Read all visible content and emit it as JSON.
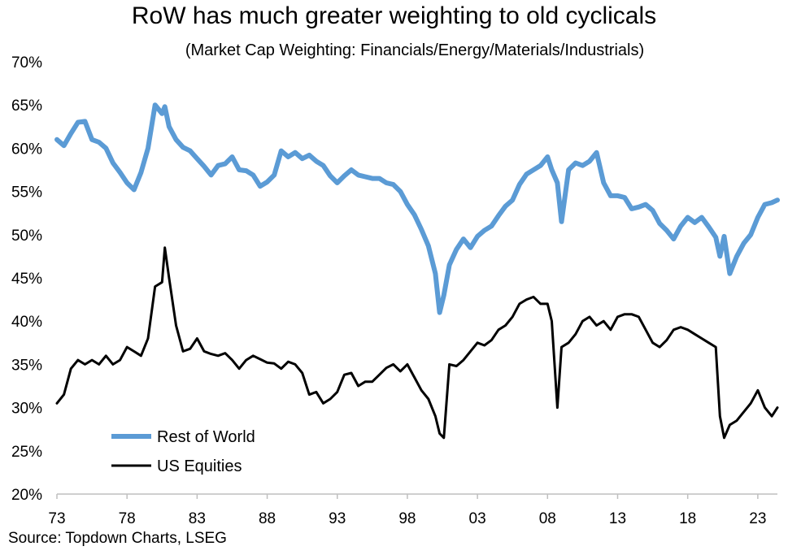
{
  "chart_data": {
    "type": "line",
    "title": "RoW has much greater weighting to old cyclicals",
    "subtitle": "(Market Cap Weighting: Financials/Energy/Materials/Industrials)",
    "source": "Source: Topdown Charts, LSEG",
    "ylim": [
      0.2,
      0.7
    ],
    "y_ticks": [
      "70%",
      "65%",
      "60%",
      "55%",
      "50%",
      "45%",
      "40%",
      "35%",
      "30%",
      "25%",
      "20%"
    ],
    "y_tick_values": [
      0.7,
      0.65,
      0.6,
      0.55,
      0.5,
      0.45,
      0.4,
      0.35,
      0.3,
      0.25,
      0.2
    ],
    "xlim": [
      1973,
      2024.4
    ],
    "x_ticks": [
      "73",
      "78",
      "83",
      "88",
      "93",
      "98",
      "03",
      "08",
      "13",
      "18",
      "23"
    ],
    "x_tick_values": [
      1973,
      1978,
      1983,
      1988,
      1993,
      1998,
      2003,
      2008,
      2013,
      2018,
      2023
    ],
    "grid": false,
    "legend_position": "bottom-left",
    "series": [
      {
        "name": "Rest of World",
        "color": "#5b9bd5",
        "x": [
          1973.0,
          1973.5,
          1974.0,
          1974.5,
          1975.0,
          1975.5,
          1976.0,
          1976.5,
          1977.0,
          1977.5,
          1978.0,
          1978.5,
          1979.0,
          1979.5,
          1980.0,
          1980.5,
          1980.7,
          1981.0,
          1981.5,
          1982.0,
          1982.5,
          1983.0,
          1983.5,
          1984.0,
          1984.5,
          1985.0,
          1985.5,
          1986.0,
          1986.5,
          1987.0,
          1987.5,
          1988.0,
          1988.5,
          1989.0,
          1989.5,
          1990.0,
          1990.5,
          1991.0,
          1991.5,
          1992.0,
          1992.5,
          1993.0,
          1993.5,
          1994.0,
          1994.5,
          1995.0,
          1995.5,
          1996.0,
          1996.5,
          1997.0,
          1997.5,
          1998.0,
          1998.5,
          1999.0,
          1999.5,
          2000.0,
          2000.3,
          2000.6,
          2001.0,
          2001.5,
          2002.0,
          2002.5,
          2003.0,
          2003.5,
          2004.0,
          2004.5,
          2005.0,
          2005.5,
          2006.0,
          2006.5,
          2007.0,
          2007.5,
          2008.0,
          2008.3,
          2008.7,
          2009.0,
          2009.5,
          2010.0,
          2010.5,
          2011.0,
          2011.5,
          2012.0,
          2012.5,
          2013.0,
          2013.5,
          2014.0,
          2014.5,
          2015.0,
          2015.5,
          2016.0,
          2016.5,
          2017.0,
          2017.5,
          2018.0,
          2018.5,
          2019.0,
          2019.5,
          2020.0,
          2020.3,
          2020.6,
          2021.0,
          2021.5,
          2022.0,
          2022.5,
          2023.0,
          2023.5,
          2024.0,
          2024.4
        ],
        "y": [
          0.61,
          0.603,
          0.617,
          0.63,
          0.631,
          0.61,
          0.607,
          0.6,
          0.583,
          0.572,
          0.56,
          0.552,
          0.572,
          0.6,
          0.65,
          0.64,
          0.648,
          0.625,
          0.61,
          0.601,
          0.597,
          0.588,
          0.579,
          0.569,
          0.58,
          0.582,
          0.59,
          0.575,
          0.574,
          0.569,
          0.556,
          0.561,
          0.569,
          0.597,
          0.59,
          0.595,
          0.588,
          0.592,
          0.585,
          0.58,
          0.568,
          0.56,
          0.568,
          0.575,
          0.569,
          0.567,
          0.565,
          0.565,
          0.56,
          0.558,
          0.55,
          0.535,
          0.523,
          0.506,
          0.487,
          0.455,
          0.41,
          0.43,
          0.465,
          0.483,
          0.495,
          0.485,
          0.498,
          0.505,
          0.51,
          0.522,
          0.533,
          0.54,
          0.558,
          0.57,
          0.575,
          0.58,
          0.59,
          0.575,
          0.56,
          0.515,
          0.575,
          0.583,
          0.58,
          0.585,
          0.595,
          0.56,
          0.545,
          0.545,
          0.543,
          0.53,
          0.532,
          0.535,
          0.528,
          0.513,
          0.505,
          0.495,
          0.51,
          0.52,
          0.514,
          0.52,
          0.509,
          0.497,
          0.475,
          0.498,
          0.455,
          0.475,
          0.49,
          0.5,
          0.52,
          0.535,
          0.537,
          0.54
        ]
      },
      {
        "name": "US Equities",
        "color": "#000000",
        "x": [
          1973.0,
          1973.5,
          1974.0,
          1974.5,
          1975.0,
          1975.5,
          1976.0,
          1976.5,
          1977.0,
          1977.5,
          1978.0,
          1978.5,
          1979.0,
          1979.5,
          1980.0,
          1980.5,
          1980.7,
          1981.0,
          1981.5,
          1982.0,
          1982.5,
          1983.0,
          1983.5,
          1984.0,
          1984.5,
          1985.0,
          1985.5,
          1986.0,
          1986.5,
          1987.0,
          1987.5,
          1988.0,
          1988.5,
          1989.0,
          1989.5,
          1990.0,
          1990.5,
          1991.0,
          1991.5,
          1992.0,
          1992.5,
          1993.0,
          1993.5,
          1994.0,
          1994.5,
          1995.0,
          1995.5,
          1996.0,
          1996.5,
          1997.0,
          1997.5,
          1998.0,
          1998.5,
          1999.0,
          1999.5,
          2000.0,
          2000.3,
          2000.6,
          2001.0,
          2001.5,
          2002.0,
          2002.5,
          2003.0,
          2003.5,
          2004.0,
          2004.5,
          2005.0,
          2005.5,
          2006.0,
          2006.5,
          2007.0,
          2007.5,
          2008.0,
          2008.3,
          2008.7,
          2009.0,
          2009.5,
          2010.0,
          2010.5,
          2011.0,
          2011.5,
          2012.0,
          2012.5,
          2013.0,
          2013.5,
          2014.0,
          2014.5,
          2015.0,
          2015.5,
          2016.0,
          2016.5,
          2017.0,
          2017.5,
          2018.0,
          2018.5,
          2019.0,
          2019.5,
          2020.0,
          2020.3,
          2020.6,
          2021.0,
          2021.5,
          2022.0,
          2022.5,
          2023.0,
          2023.5,
          2024.0,
          2024.4
        ],
        "y": [
          0.305,
          0.315,
          0.345,
          0.355,
          0.35,
          0.355,
          0.35,
          0.36,
          0.35,
          0.355,
          0.37,
          0.365,
          0.36,
          0.38,
          0.44,
          0.445,
          0.485,
          0.45,
          0.395,
          0.365,
          0.368,
          0.38,
          0.365,
          0.362,
          0.36,
          0.363,
          0.355,
          0.345,
          0.355,
          0.36,
          0.356,
          0.352,
          0.351,
          0.345,
          0.353,
          0.35,
          0.34,
          0.315,
          0.318,
          0.305,
          0.31,
          0.318,
          0.338,
          0.34,
          0.325,
          0.33,
          0.33,
          0.338,
          0.346,
          0.35,
          0.342,
          0.35,
          0.335,
          0.32,
          0.31,
          0.29,
          0.27,
          0.265,
          0.35,
          0.348,
          0.355,
          0.365,
          0.375,
          0.372,
          0.378,
          0.39,
          0.395,
          0.405,
          0.42,
          0.425,
          0.428,
          0.42,
          0.42,
          0.4,
          0.3,
          0.37,
          0.375,
          0.385,
          0.4,
          0.405,
          0.395,
          0.4,
          0.39,
          0.405,
          0.408,
          0.408,
          0.405,
          0.39,
          0.375,
          0.37,
          0.378,
          0.39,
          0.393,
          0.39,
          0.385,
          0.38,
          0.375,
          0.37,
          0.29,
          0.265,
          0.28,
          0.285,
          0.295,
          0.305,
          0.32,
          0.3,
          0.29,
          0.3
        ]
      }
    ]
  }
}
